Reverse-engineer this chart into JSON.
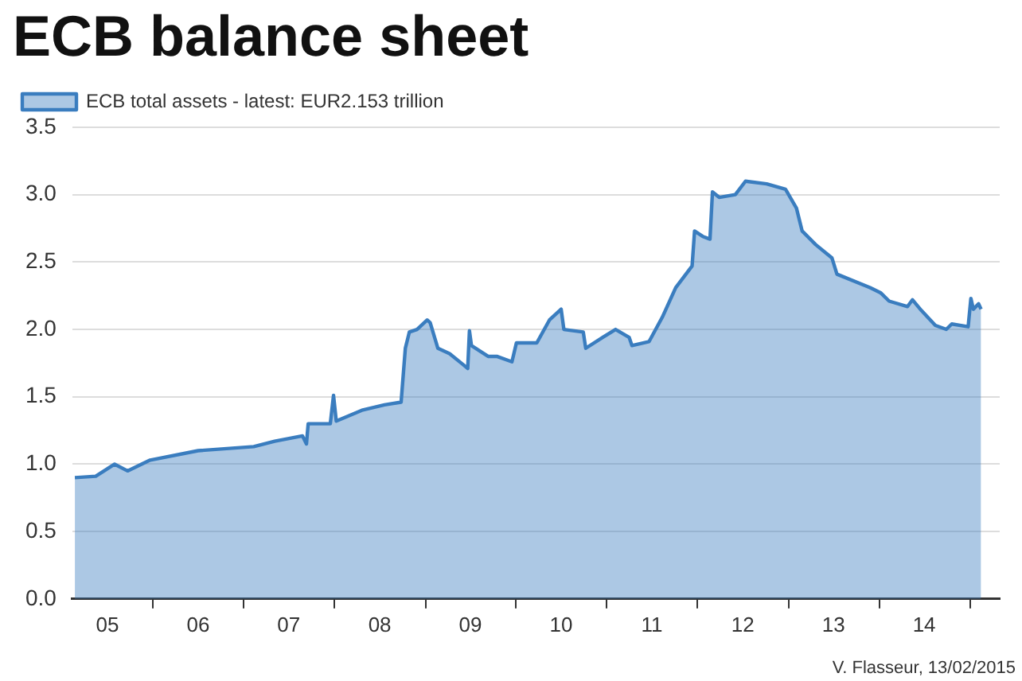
{
  "chart_data": {
    "type": "area",
    "title": "ECB balance sheet",
    "annotations": [
      "V. Flasseur, 13/02/2015"
    ],
    "legend": "top left",
    "grid": "y",
    "marker": "none",
    "line_style": "solid",
    "xlim": [
      "2005-02-10",
      "2015-05-01"
    ],
    "xticks": [
      {
        "value": "2005-07-01",
        "label": "05"
      },
      {
        "value": "2006-01-01",
        "label": null
      },
      {
        "value": "2006-07-01",
        "label": "06"
      },
      {
        "value": "2007-01-01",
        "label": null
      },
      {
        "value": "2007-07-01",
        "label": "07"
      },
      {
        "value": "2008-01-01",
        "label": null
      },
      {
        "value": "2008-07-01",
        "label": "08"
      },
      {
        "value": "2009-01-01",
        "label": null
      },
      {
        "value": "2009-07-01",
        "label": "09"
      },
      {
        "value": "2010-01-01",
        "label": null
      },
      {
        "value": "2010-07-01",
        "label": "10"
      },
      {
        "value": "2011-01-01",
        "label": null
      },
      {
        "value": "2011-07-01",
        "label": "11"
      },
      {
        "value": "2012-01-01",
        "label": null
      },
      {
        "value": "2012-07-01",
        "label": "12"
      },
      {
        "value": "2013-01-01",
        "label": null
      },
      {
        "value": "2013-07-01",
        "label": "13"
      },
      {
        "value": "2014-01-01",
        "label": null
      },
      {
        "value": "2014-07-01",
        "label": "14"
      },
      {
        "value": "2015-01-01",
        "label": null
      }
    ],
    "ylim": [
      0,
      3.5
    ],
    "yticks": [
      {
        "value": 0,
        "label": "0.0"
      },
      {
        "value": 0.5,
        "label": "0.5"
      },
      {
        "value": 1,
        "label": "1.0"
      },
      {
        "value": 1.5,
        "label": "1.5"
      },
      {
        "value": 2,
        "label": "2.0"
      },
      {
        "value": 2.5,
        "label": "2.5"
      },
      {
        "value": 3,
        "label": "3.0"
      },
      {
        "value": 3.5,
        "label": "3.5"
      }
    ],
    "series": [
      {
        "name": "ECB total assets - latest: EUR2.153 trillion",
        "color": "#3a7dbf",
        "x": [
          "2005-02-20",
          "2005-05-15",
          "2005-07-30",
          "2005-09-20",
          "2005-12-20",
          "2006-07-01",
          "2007-02-10",
          "2007-05-05",
          "2007-08-25",
          "2007-09-10",
          "2007-09-17",
          "2007-12-15",
          "2007-12-28",
          "2008-01-08",
          "2008-04-20",
          "2008-07-20",
          "2008-09-25",
          "2008-10-12",
          "2008-10-28",
          "2008-11-28",
          "2009-01-08",
          "2009-01-20",
          "2009-02-20",
          "2009-04-08",
          "2009-06-01",
          "2009-06-20",
          "2009-06-27",
          "2009-07-05",
          "2009-09-10",
          "2009-10-15",
          "2009-12-15",
          "2010-01-02",
          "2010-03-25",
          "2010-05-15",
          "2010-07-01",
          "2010-07-12",
          "2010-09-28",
          "2010-10-08",
          "2010-12-15",
          "2011-02-05",
          "2011-04-01",
          "2011-04-12",
          "2011-06-20",
          "2011-08-12",
          "2011-10-05",
          "2011-12-10",
          "2011-12-20",
          "2012-01-22",
          "2012-02-20",
          "2012-03-01",
          "2012-03-28",
          "2012-06-01",
          "2012-07-12",
          "2012-10-05",
          "2012-12-20",
          "2013-02-02",
          "2013-02-25",
          "2013-04-20",
          "2013-06-25",
          "2013-07-15",
          "2013-11-25",
          "2014-01-08",
          "2014-02-10",
          "2014-04-25",
          "2014-05-15",
          "2014-06-20",
          "2014-08-15",
          "2014-09-28",
          "2014-10-20",
          "2014-12-25",
          "2015-01-05",
          "2015-01-15",
          "2015-02-05",
          "2015-02-15"
        ],
        "values": [
          0.9,
          0.91,
          1.0,
          0.95,
          1.03,
          1.1,
          1.13,
          1.17,
          1.21,
          1.15,
          1.3,
          1.3,
          1.51,
          1.32,
          1.4,
          1.44,
          1.46,
          1.86,
          1.98,
          2.0,
          2.07,
          2.05,
          1.86,
          1.82,
          1.74,
          1.71,
          1.99,
          1.88,
          1.8,
          1.8,
          1.76,
          1.9,
          1.9,
          2.07,
          2.15,
          2.0,
          1.98,
          1.86,
          1.94,
          2.0,
          1.94,
          1.88,
          1.91,
          2.09,
          2.31,
          2.47,
          2.73,
          2.69,
          2.67,
          3.02,
          2.98,
          3.0,
          3.1,
          3.08,
          3.04,
          2.9,
          2.73,
          2.63,
          2.53,
          2.41,
          2.31,
          2.27,
          2.21,
          2.17,
          2.22,
          2.14,
          2.03,
          2.0,
          2.04,
          2.02,
          2.23,
          2.15,
          2.19,
          2.15
        ]
      }
    ]
  }
}
